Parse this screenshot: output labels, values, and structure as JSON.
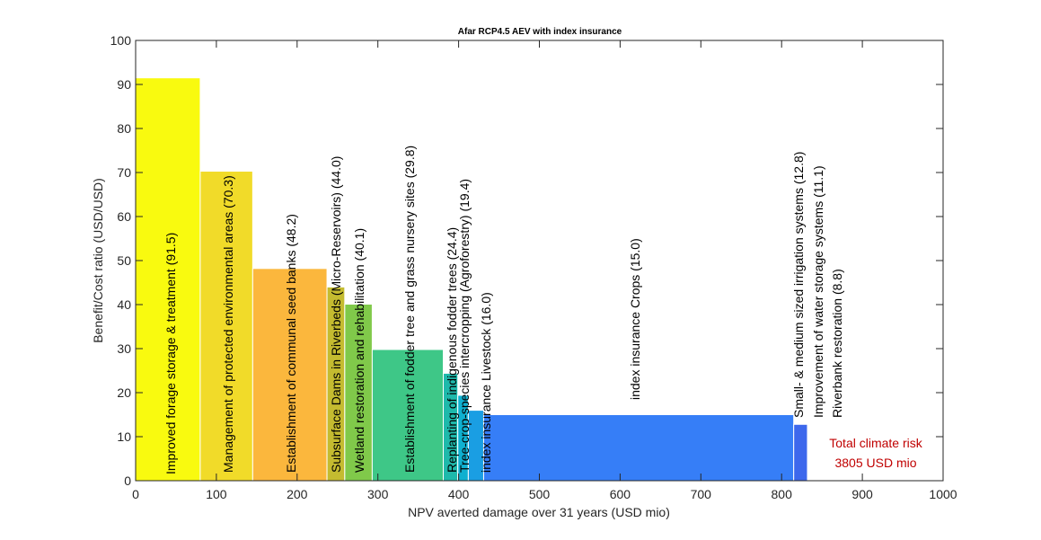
{
  "chart_data": {
    "type": "bar",
    "title": "Afar RCP4.5 AEV with index insurance",
    "xlabel": "NPV averted damage over 31 years (USD mio)",
    "ylabel": "Benefit/Cost ratio (USD/USD)",
    "xlim": [
      0,
      1000
    ],
    "ylim": [
      0,
      100
    ],
    "x_ticks": [
      0,
      100,
      200,
      300,
      400,
      500,
      600,
      700,
      800,
      900,
      1000
    ],
    "y_ticks": [
      0,
      10,
      20,
      30,
      40,
      50,
      60,
      70,
      80,
      90,
      100
    ],
    "grid": false,
    "bars": [
      {
        "label": "Improved forage storage & treatment  (91.5)",
        "x_start": 0,
        "x_end": 80,
        "value": 91.5,
        "color": "#f9fa0f"
      },
      {
        "label": "Management of protected environmental areas  (70.3)",
        "x_start": 80,
        "x_end": 145,
        "value": 70.3,
        "color": "#f1db29"
      },
      {
        "label": "Establishment of communal seed banks  (48.2)",
        "x_start": 145,
        "x_end": 237,
        "value": 48.2,
        "color": "#fbb73d"
      },
      {
        "label": "Subsurface Dams in Riverbeds (Micro-Reservoirs)  (44.0)",
        "x_start": 237,
        "x_end": 259,
        "value": 44.0,
        "color": "#c4bb30"
      },
      {
        "label": "Wetland restoration and rehabilitation  (40.1)",
        "x_start": 259,
        "x_end": 293,
        "value": 40.1,
        "color": "#80c94a"
      },
      {
        "label": "Establishment of fodder tree and grass nursery sites  (29.8)",
        "x_start": 293,
        "x_end": 381,
        "value": 29.8,
        "color": "#3ec787"
      },
      {
        "label": "Replanting of indigenous fodder trees  (24.4)",
        "x_start": 381,
        "x_end": 399,
        "value": 24.4,
        "color": "#1eb9ab"
      },
      {
        "label": "Tree-crop-species intercropping (Agroforestry)  (19.4)",
        "x_start": 399,
        "x_end": 412,
        "value": 19.4,
        "color": "#0fb0d0"
      },
      {
        "label": "index insurance Livestock  (16.0)",
        "x_start": 412,
        "x_end": 431,
        "value": 16.0,
        "color": "#1a9ee3"
      },
      {
        "label": "index insurance Crops  (15.0)",
        "x_start": 431,
        "x_end": 815,
        "value": 15.0,
        "color": "#367ef7"
      },
      {
        "label": "Small- & medium sized irrigation systems  (12.8)",
        "x_start": 815,
        "x_end": 832,
        "value": 12.8,
        "color": "#3d68ec"
      },
      {
        "label": "Improvement of water storage systems  (11.1)",
        "x_start": 832,
        "x_end": 832,
        "value": 11.1,
        "color": "#3d5ae0"
      },
      {
        "label": "Riverbank restoration  (8.8)",
        "x_start": 832,
        "x_end": 832,
        "value": 8.8,
        "color": "#3f4fd6"
      }
    ],
    "annotation": {
      "lines": [
        "Total climate risk",
        "3805 USD mio"
      ],
      "color": "#c00000"
    }
  }
}
